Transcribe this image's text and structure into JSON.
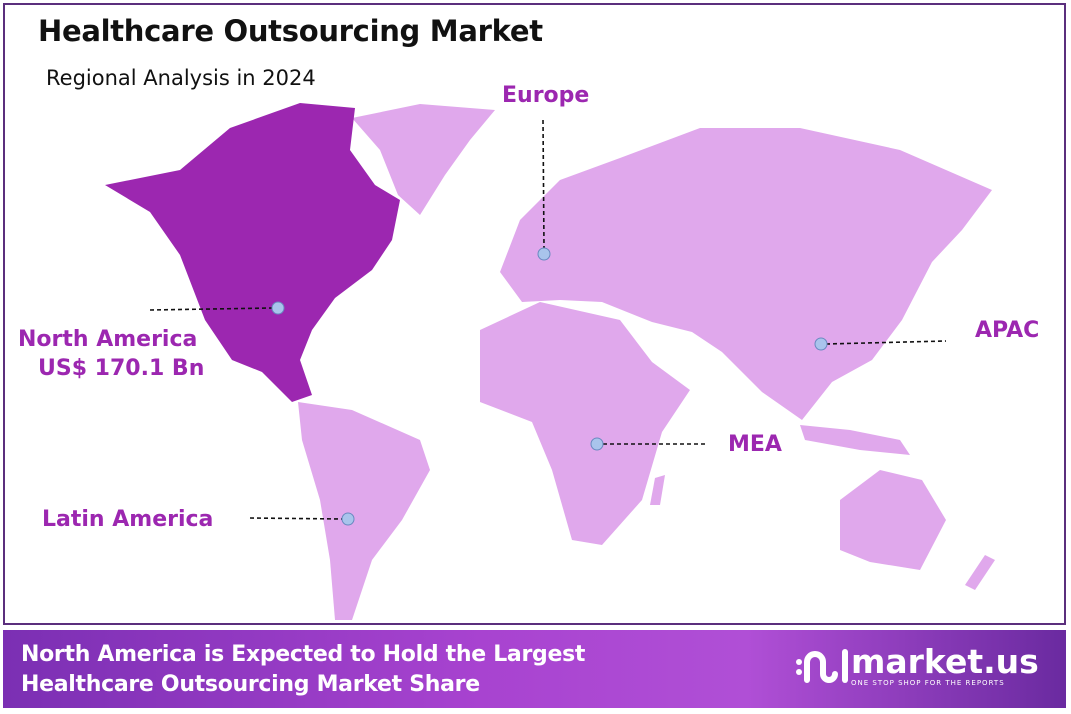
{
  "header": {
    "title": "Healthcare Outsourcing Market",
    "subtitle": "Regional Analysis in 2024"
  },
  "colors": {
    "highlight": "#9c27b0",
    "region": "#e0a8ec",
    "label": "#9c27b0"
  },
  "regions": [
    {
      "name": "North America",
      "value": "US$ 170.1 Bn",
      "highlighted": true
    },
    {
      "name": "Europe"
    },
    {
      "name": "APAC"
    },
    {
      "name": "MEA"
    },
    {
      "name": "Latin America"
    }
  ],
  "banner": {
    "line1": "North America is Expected to Hold the Largest",
    "line2": "Healthcare Outsourcing Market Share"
  },
  "logo": {
    "name": "market.us",
    "tagline": "ONE STOP SHOP FOR THE REPORTS"
  }
}
